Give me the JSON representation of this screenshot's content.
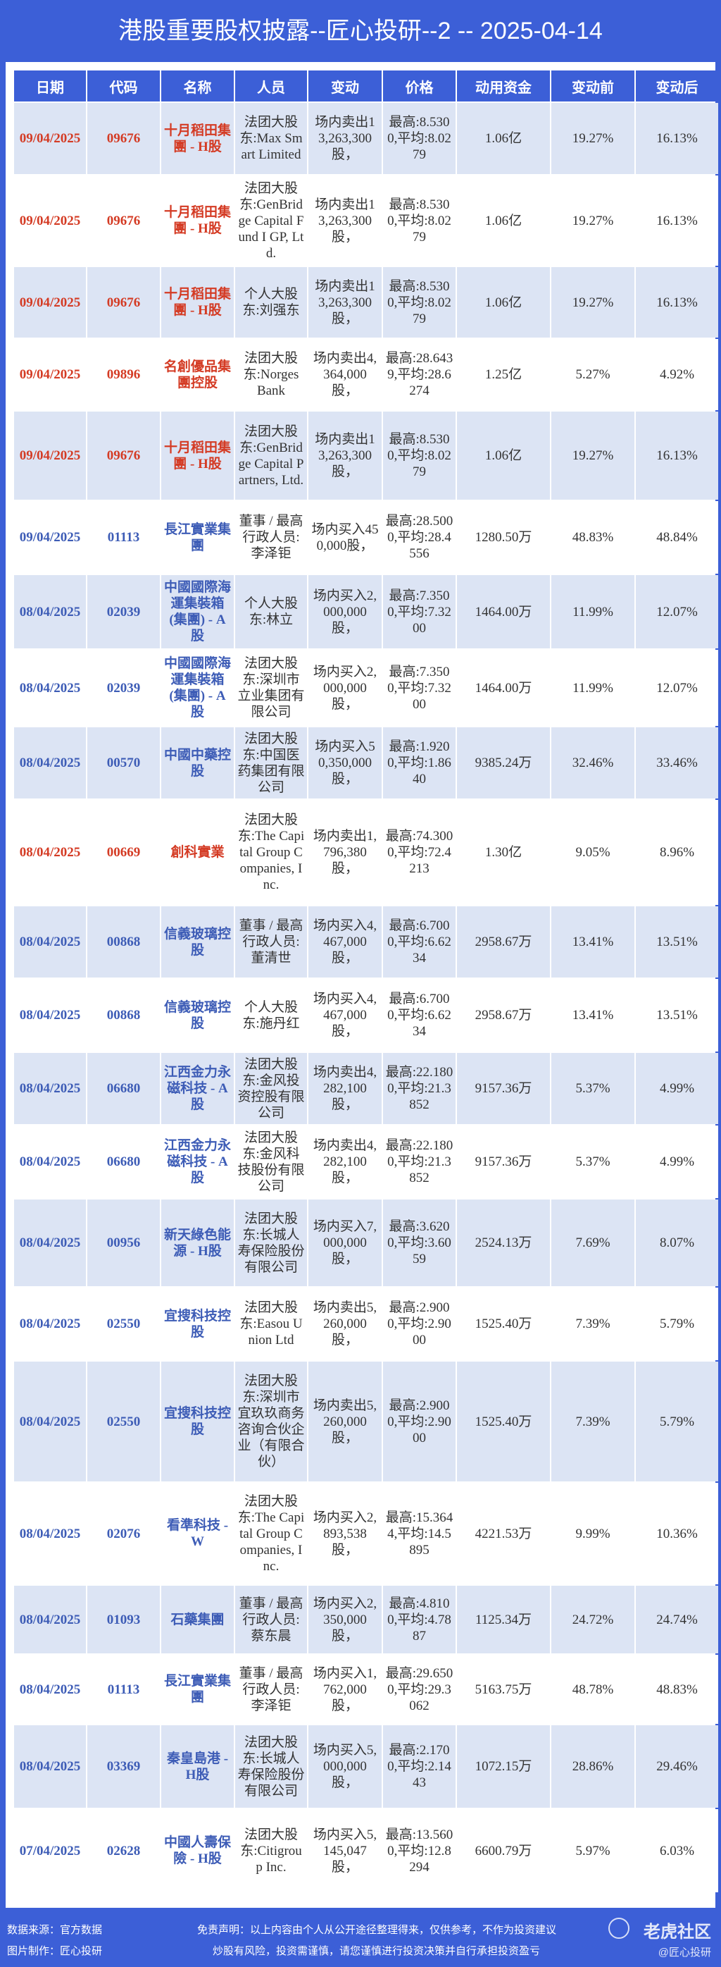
{
  "title": "港股重要股权披露--匠心投研--2 -- 2025-04-14",
  "colors": {
    "background": "#3c5fd7",
    "header": "#3c5fd7",
    "row_alt": "#dce4f4",
    "highlight_red": "#d43b24",
    "highlight_blue": "#3d5cb6"
  },
  "table": {
    "headers": [
      "日期",
      "代码",
      "名称",
      "人员",
      "变动",
      "价格",
      "动用资金",
      "变动前",
      "变动后"
    ],
    "rows": [
      {
        "color": "red",
        "cells": [
          "09/04/2025",
          "09676",
          "十月稻田集團 - H股",
          "法团大股东:Max Smart Limited",
          "场内卖出13,263,300股，",
          "最高:8.5300,平均:8.0279",
          "1.06亿",
          "19.27%",
          "16.13%"
        ]
      },
      {
        "color": "red",
        "cells": [
          "09/04/2025",
          "09676",
          "十月稻田集團 - H股",
          "法团大股东:GenBridge Capital Fund I GP, Ltd.",
          "场内卖出13,263,300股，",
          "最高:8.5300,平均:8.0279",
          "1.06亿",
          "19.27%",
          "16.13%"
        ]
      },
      {
        "color": "red",
        "cells": [
          "09/04/2025",
          "09676",
          "十月稻田集團 - H股",
          "个人大股东:刘强东",
          "场内卖出13,263,300股，",
          "最高:8.5300,平均:8.0279",
          "1.06亿",
          "19.27%",
          "16.13%"
        ]
      },
      {
        "color": "red",
        "cells": [
          "09/04/2025",
          "09896",
          "名創優品集團控股",
          "法团大股东:Norges Bank",
          "场内卖出4,364,000股，",
          "最高:28.6439,平均:28.6274",
          "1.25亿",
          "5.27%",
          "4.92%"
        ]
      },
      {
        "color": "red",
        "cells": [
          "09/04/2025",
          "09676",
          "十月稻田集團 - H股",
          "法团大股东:GenBridge Capital Partners, Ltd.",
          "场内卖出13,263,300股，",
          "最高:8.5300,平均:8.0279",
          "1.06亿",
          "19.27%",
          "16.13%"
        ]
      },
      {
        "color": "blue",
        "cells": [
          "09/04/2025",
          "01113",
          "長江實業集團",
          "董事 / 最高行政人员:李泽钜",
          "场内买入450,000股，",
          "最高:28.5000,平均:28.4556",
          "1280.50万",
          "48.83%",
          "48.84%"
        ]
      },
      {
        "color": "blue",
        "cells": [
          "08/04/2025",
          "02039",
          "中國國際海運集裝箱(集團) - A股",
          "个人大股东:林立",
          "场内买入2,000,000股，",
          "最高:7.3500,平均:7.3200",
          "1464.00万",
          "11.99%",
          "12.07%"
        ]
      },
      {
        "color": "blue",
        "cells": [
          "08/04/2025",
          "02039",
          "中國國際海運集裝箱(集團) - A股",
          "法团大股东:深圳市立业集团有限公司",
          "场内买入2,000,000股，",
          "最高:7.3500,平均:7.3200",
          "1464.00万",
          "11.99%",
          "12.07%"
        ]
      },
      {
        "color": "blue",
        "cells": [
          "08/04/2025",
          "00570",
          "中國中藥控股",
          "法团大股东:中国医药集团有限公司",
          "场内买入50,350,000股，",
          "最高:1.9200,平均:1.8640",
          "9385.24万",
          "32.46%",
          "33.46%"
        ]
      },
      {
        "color": "red",
        "cells": [
          "08/04/2025",
          "00669",
          "創科實業",
          "法团大股东:The Capital Group Companies, Inc.",
          "场内卖出1,796,380股，",
          "最高:74.3000,平均:72.4213",
          "1.30亿",
          "9.05%",
          "8.96%"
        ]
      },
      {
        "color": "blue",
        "cells": [
          "08/04/2025",
          "00868",
          "信義玻璃控股",
          "董事 / 最高行政人员:董清世",
          "场内买入4,467,000股，",
          "最高:6.7000,平均:6.6234",
          "2958.67万",
          "13.41%",
          "13.51%"
        ]
      },
      {
        "color": "blue",
        "cells": [
          "08/04/2025",
          "00868",
          "信義玻璃控股",
          "个人大股东:施丹红",
          "场内买入4,467,000股，",
          "最高:6.7000,平均:6.6234",
          "2958.67万",
          "13.41%",
          "13.51%"
        ]
      },
      {
        "color": "blue",
        "cells": [
          "08/04/2025",
          "06680",
          "江西金力永磁科技 - A股",
          "法团大股东:金风投资控股有限公司",
          "场内卖出4,282,100股，",
          "最高:22.1800,平均:21.3852",
          "9157.36万",
          "5.37%",
          "4.99%"
        ]
      },
      {
        "color": "blue",
        "cells": [
          "08/04/2025",
          "06680",
          "江西金力永磁科技 - A股",
          "法团大股东:金风科技股份有限公司",
          "场内卖出4,282,100股，",
          "最高:22.1800,平均:21.3852",
          "9157.36万",
          "5.37%",
          "4.99%"
        ]
      },
      {
        "color": "blue",
        "cells": [
          "08/04/2025",
          "00956",
          "新天綠色能源 - H股",
          "法团大股东:长城人寿保险股份有限公司",
          "场内买入7,000,000股，",
          "最高:3.6200,平均:3.6059",
          "2524.13万",
          "7.69%",
          "8.07%"
        ]
      },
      {
        "color": "blue",
        "cells": [
          "08/04/2025",
          "02550",
          "宜搜科技控股",
          "法团大股东:Easou Union Ltd",
          "场内卖出5,260,000股，",
          "最高:2.9000,平均:2.9000",
          "1525.40万",
          "7.39%",
          "5.79%"
        ]
      },
      {
        "color": "blue",
        "cells": [
          "08/04/2025",
          "02550",
          "宜搜科技控股",
          "法团大股东:深圳市宜玖玖商务咨询合伙企业（有限合伙）",
          "场内卖出5,260,000股，",
          "最高:2.9000,平均:2.9000",
          "1525.40万",
          "7.39%",
          "5.79%"
        ]
      },
      {
        "color": "blue",
        "cells": [
          "08/04/2025",
          "02076",
          "看準科技 - W",
          "法团大股东:The Capital Group Companies, Inc.",
          "场内买入2,893,538股，",
          "最高:15.3644,平均:14.5895",
          "4221.53万",
          "9.99%",
          "10.36%"
        ]
      },
      {
        "color": "blue",
        "cells": [
          "08/04/2025",
          "01093",
          "石藥集團",
          "董事 / 最高行政人员:蔡东晨",
          "场内买入2,350,000股，",
          "最高:4.8100,平均:4.7887",
          "1125.34万",
          "24.72%",
          "24.74%"
        ]
      },
      {
        "color": "blue",
        "cells": [
          "08/04/2025",
          "01113",
          "長江實業集團",
          "董事 / 最高行政人员:李泽钜",
          "场内买入1,762,000股，",
          "最高:29.6500,平均:29.3062",
          "5163.75万",
          "48.78%",
          "48.83%"
        ]
      },
      {
        "color": "blue",
        "cells": [
          "08/04/2025",
          "03369",
          "秦皇島港 - H股",
          "法团大股东:长城人寿保险股份有限公司",
          "场内买入5,000,000股，",
          "最高:2.1700,平均:2.1443",
          "1072.15万",
          "28.86%",
          "29.46%"
        ]
      },
      {
        "color": "blue",
        "cells": [
          "07/04/2025",
          "02628",
          "中國人壽保險 - H股",
          "法团大股东:Citigroup Inc.",
          "场内买入5,145,047股，",
          "最高:13.5600,平均:12.8294",
          "6600.79万",
          "5.97%",
          "6.03%"
        ]
      }
    ]
  },
  "footer": {
    "source": "数据来源：官方数据",
    "maker": "图片制作：匠心投研",
    "disclaimer1": "免责声明：以上内容由个人从公开途径整理得来，仅供参考，不作为投资建议",
    "disclaimer2": "炒股有风险，投资需谨慎，请您谨慎进行投资决策并自行承担投资盈亏",
    "watermark": "老虎社区",
    "watermark_handle": "@匠心投研"
  }
}
